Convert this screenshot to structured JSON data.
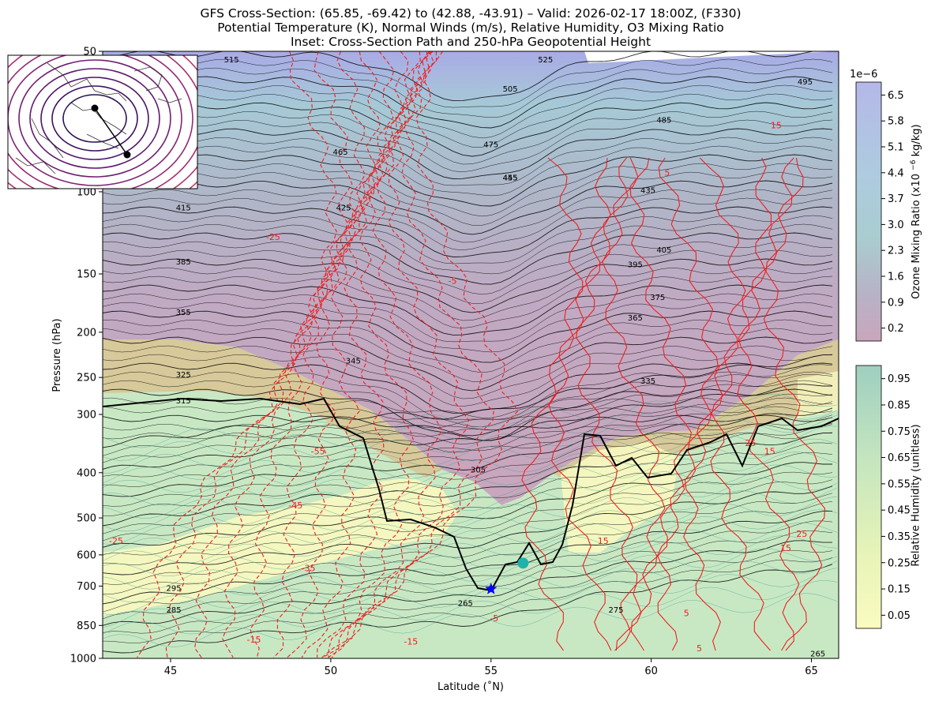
{
  "title_lines": [
    "GFS Cross-Section: (65.85, -69.42) to (42.88, -43.91) – Valid: 2026-02-17 18:00Z, (F330)",
    "Potential Temperature (K), Normal Winds (m/s), Relative Humidity, O3 Mixing Ratio",
    "Inset: Cross-Section Path and 250-hPa Geopotential Height"
  ],
  "chart_data": {
    "type": "cross-section contour",
    "xlabel": "Latitude (˚N)",
    "ylabel": "Pressure (hPa)",
    "xlim": [
      42.88,
      65.85
    ],
    "ylim": [
      1000,
      50
    ],
    "y_scale": "log",
    "x_ticks": [
      45,
      50,
      55,
      60,
      65
    ],
    "y_ticks": [
      1000,
      850,
      700,
      600,
      500,
      400,
      300,
      250,
      200,
      150,
      100,
      50
    ],
    "theta_labels": [
      {
        "text": "515",
        "lat": 46.9,
        "p": 52
      },
      {
        "text": "525",
        "lat": 56.7,
        "p": 52
      },
      {
        "text": "505",
        "lat": 55.6,
        "p": 60
      },
      {
        "text": "495",
        "lat": 64.8,
        "p": 58
      },
      {
        "text": "485",
        "lat": 60.4,
        "p": 70
      },
      {
        "text": "475",
        "lat": 55.0,
        "p": 79
      },
      {
        "text": "465",
        "lat": 50.3,
        "p": 82
      },
      {
        "text": "455",
        "lat": 55.6,
        "p": 93
      },
      {
        "text": "445",
        "lat": 55.6,
        "p": 93
      },
      {
        "text": "435",
        "lat": 59.9,
        "p": 99
      },
      {
        "text": "425",
        "lat": 50.4,
        "p": 108
      },
      {
        "text": "415",
        "lat": 45.4,
        "p": 108
      },
      {
        "text": "405",
        "lat": 60.4,
        "p": 133
      },
      {
        "text": "395",
        "lat": 59.5,
        "p": 143
      },
      {
        "text": "385",
        "lat": 45.4,
        "p": 141
      },
      {
        "text": "375",
        "lat": 60.2,
        "p": 168
      },
      {
        "text": "365",
        "lat": 59.5,
        "p": 186
      },
      {
        "text": "355",
        "lat": 45.4,
        "p": 181
      },
      {
        "text": "345",
        "lat": 50.7,
        "p": 230
      },
      {
        "text": "335",
        "lat": 59.9,
        "p": 254
      },
      {
        "text": "325",
        "lat": 45.4,
        "p": 246
      },
      {
        "text": "315",
        "lat": 45.4,
        "p": 280
      },
      {
        "text": "305",
        "lat": 54.6,
        "p": 393
      },
      {
        "text": "295",
        "lat": 45.1,
        "p": 705
      },
      {
        "text": "285",
        "lat": 45.1,
        "p": 785
      },
      {
        "text": "275",
        "lat": 58.9,
        "p": 785
      },
      {
        "text": "265",
        "lat": 54.2,
        "p": 760
      },
      {
        "text": "265",
        "lat": 65.2,
        "p": 975
      }
    ],
    "wind_labels": [
      {
        "text": "-25",
        "lat": 48.2,
        "p": 125
      },
      {
        "text": "-5",
        "lat": 53.8,
        "p": 155
      },
      {
        "text": "5",
        "lat": 60.5,
        "p": 91
      },
      {
        "text": "15",
        "lat": 63.9,
        "p": 72
      },
      {
        "text": "-55",
        "lat": 49.6,
        "p": 360
      },
      {
        "text": "-45",
        "lat": 48.9,
        "p": 470
      },
      {
        "text": "-35",
        "lat": 49.3,
        "p": 640
      },
      {
        "text": "-25",
        "lat": 43.3,
        "p": 560
      },
      {
        "text": "-15",
        "lat": 47.6,
        "p": 910
      },
      {
        "text": "-15",
        "lat": 52.5,
        "p": 920
      },
      {
        "text": "-5",
        "lat": 55.1,
        "p": 820
      },
      {
        "text": "15",
        "lat": 58.5,
        "p": 560
      },
      {
        "text": "5",
        "lat": 61.1,
        "p": 800
      },
      {
        "text": "5",
        "lat": 61.5,
        "p": 950
      },
      {
        "text": "15",
        "lat": 64.2,
        "p": 580
      },
      {
        "text": "15",
        "lat": 63.7,
        "p": 360
      },
      {
        "text": "25",
        "lat": 63.1,
        "p": 345
      },
      {
        "text": "25",
        "lat": 64.7,
        "p": 540
      }
    ],
    "tropopause_markers": {
      "star": {
        "lat": 55.0,
        "p": 710,
        "color": "#0000ff"
      },
      "dot": {
        "lat": 56.0,
        "p": 625,
        "color": "#20b2aa"
      }
    },
    "colorbars": [
      {
        "label": "Ozone Mixing Ratio (x10 ^-6 kg/kg)",
        "multiplier": "1e−6",
        "ticks": [
          "6.5",
          "5.8",
          "5.1",
          "4.4",
          "3.7",
          "3.0",
          "2.3",
          "1.6",
          "0.9",
          "0.2"
        ],
        "colors": [
          "#b5b8e8",
          "#aecbe0",
          "#a9cdd0",
          "#c7a6bc"
        ]
      },
      {
        "label": "Relative Humidity (unitless)",
        "ticks": [
          "0.95",
          "0.85",
          "0.75",
          "0.65",
          "0.55",
          "0.45",
          "0.35",
          "0.25",
          "0.15",
          "0.05"
        ],
        "colors": [
          "#9fcfc0",
          "#c4e5bf",
          "#e6f3b8",
          "#fafbc0"
        ]
      }
    ],
    "inset": {
      "title": "250-hPa Geopotential Height",
      "path_start": "(65.85, -69.42)",
      "path_end": "(42.88, -43.91)"
    }
  }
}
